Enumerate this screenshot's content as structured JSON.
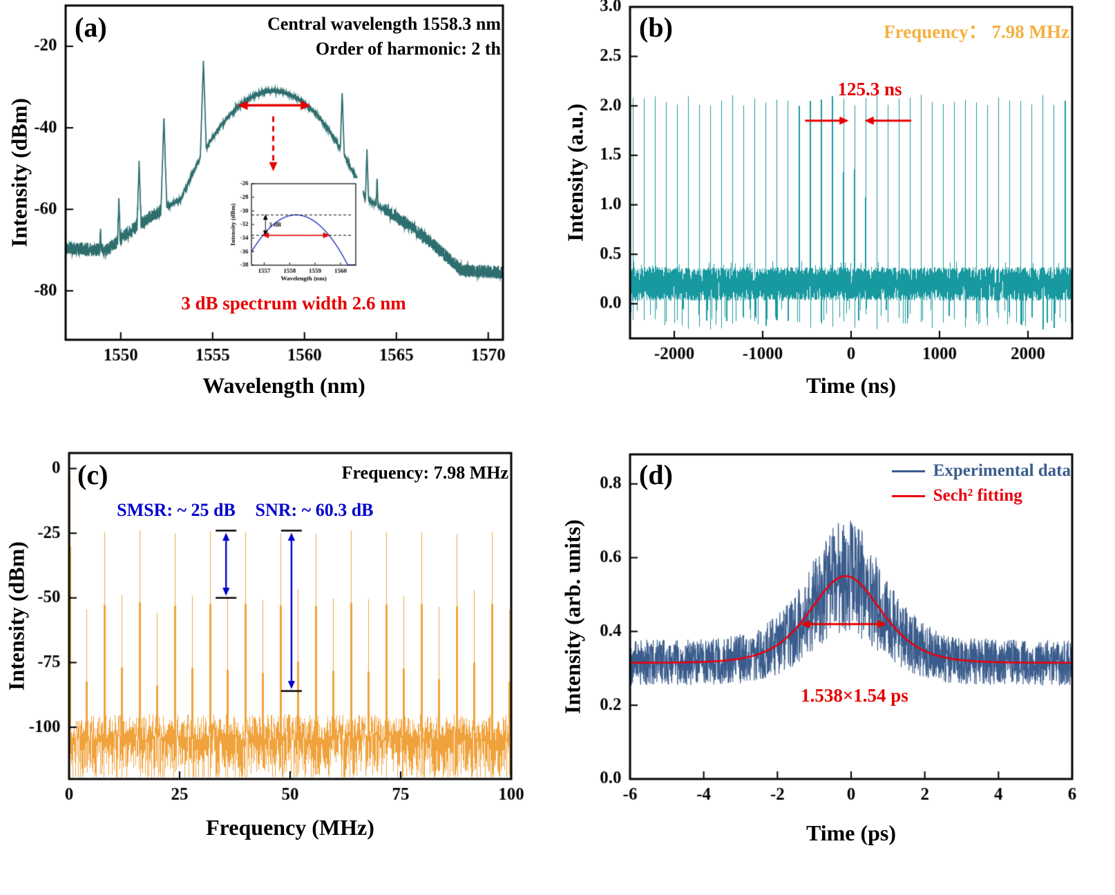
{
  "figure": {
    "background": "#ffffff"
  },
  "panels": {
    "a": {
      "label": "(a)",
      "xlabel": "Wavelength (nm)",
      "ylabel": "Intensity (dBm)",
      "ann1": "Central wavelength 1558.3 nm",
      "ann2": "Order of harmonic: 2 th",
      "width_note": "3 dB spectrum width 2.6 nm"
    },
    "b": {
      "label": "(b)",
      "xlabel": "Time (ns)",
      "ylabel": "Intensity (a.u.)",
      "freq_note": "Frequency： 7.98 MHz",
      "period_note": "125.3 ns"
    },
    "c": {
      "label": "(c)",
      "xlabel": "Frequency (MHz)",
      "ylabel": "Intensity (dBm)",
      "freq_note": "Frequency: 7.98 MHz",
      "smsr_note": "SMSR: ~ 25 dB",
      "snr_note": "SNR: ~ 60.3 dB"
    },
    "d": {
      "label": "(d)",
      "xlabel": "Time (ps)",
      "ylabel": "Intensity (arb. units)",
      "legend_exp": "Experimental data",
      "legend_fit": "Sech² fitting",
      "width_note": "1.538×1.54 ps"
    }
  },
  "chart_data": [
    {
      "panel": "a",
      "type": "line",
      "title": "Optical spectrum, 2nd-order harmonic mode locking",
      "xlabel": "Wavelength (nm)",
      "ylabel": "Intensity (dBm)",
      "xlim": [
        1547,
        1570.8
      ],
      "ylim": [
        -92,
        -10
      ],
      "xticks": [
        [
          1550,
          "1550"
        ],
        [
          1555,
          "1555"
        ],
        [
          1560,
          "1560"
        ],
        [
          1565,
          "1565"
        ],
        [
          1570,
          "1570"
        ]
      ],
      "yticks": [
        [
          -20,
          "-20"
        ],
        [
          -40,
          "-40"
        ],
        [
          -60,
          "-60"
        ],
        [
          -80,
          "-80"
        ]
      ],
      "color": "#2e6e6e",
      "central_wavelength_nm": 1558.3,
      "order_of_harmonic": 2,
      "spectrum_width_3db_nm": 2.6,
      "envelope": {
        "peak_dbm": -31,
        "coeff": 1.05
      },
      "pedestal": {
        "peak_dbm": -52,
        "coeff": 0.22
      },
      "noise_floor_dbm": {
        "left": -69.5,
        "right": -75.5
      },
      "spikes": [
        [
          1548.9,
          -64
        ],
        [
          1549.9,
          -57
        ],
        [
          1551.0,
          -48.5
        ],
        [
          1552.35,
          -37.5
        ],
        [
          1554.5,
          -23.5
        ],
        [
          1562.05,
          -31
        ],
        [
          1563.4,
          -45.5
        ],
        [
          1563.95,
          -52
        ],
        [
          1564.9,
          -62
        ],
        [
          1566.6,
          -66.5
        ]
      ],
      "width_arrow": {
        "x1": 1556.4,
        "x2": 1560.3,
        "y": -34.5
      },
      "pointer_arrow": {
        "x": 1558.3,
        "y1": -37.2,
        "y2": -50.5
      },
      "annotation_color": "#e60000",
      "inset": {
        "xlim": [
          1556.5,
          1560.6
        ],
        "ylim": [
          -38,
          -26
        ],
        "xticks": [
          [
            1557,
            "1557"
          ],
          [
            1558,
            "1558"
          ],
          [
            1559,
            "1559"
          ],
          [
            1560,
            "1560"
          ]
        ],
        "yticks": [
          [
            -26,
            "-26"
          ],
          [
            -28,
            "-28"
          ],
          [
            -30,
            "-30"
          ],
          [
            -32,
            "-32"
          ],
          [
            -34,
            "-34"
          ],
          [
            -36,
            "-36"
          ],
          [
            -38,
            "-38"
          ]
        ],
        "xlabel": "Wavelength (nm)",
        "ylabel": "Intensity (dBm)",
        "label_3db": "3 dB",
        "color": "#2233bb",
        "peak_dbm": -30.6,
        "coeff": 1.78,
        "center_nm": 1558.25,
        "dash_levels": [
          -30.6,
          -33.6
        ],
        "red_arrow": {
          "x1": 1556.95,
          "x2": 1559.55,
          "y": -33.6
        }
      }
    },
    {
      "panel": "b",
      "type": "line",
      "title": "Pulse train",
      "xlabel": "Time (ns)",
      "ylabel": "Intensity (a.u.)",
      "xlim": [
        -2500,
        2500
      ],
      "ylim": [
        -0.35,
        3.0
      ],
      "xticks": [
        [
          -2000,
          "-2000"
        ],
        [
          -1000,
          "-1000"
        ],
        [
          0,
          "0"
        ],
        [
          1000,
          "1000"
        ],
        [
          2000,
          "2000"
        ]
      ],
      "yticks": [
        [
          0,
          "0.0"
        ],
        [
          0.5,
          "0.5"
        ],
        [
          1,
          "1.0"
        ],
        [
          1.5,
          "1.5"
        ],
        [
          2,
          "2.0"
        ],
        [
          2.5,
          "2.5"
        ],
        [
          3,
          "3.0"
        ]
      ],
      "color": "#18989f",
      "repetition_frequency_mhz": 7.98,
      "pulse_period_ns": 125.3,
      "pulse_height_au": 2.05,
      "noise_band_au": [
        0.0,
        0.4
      ],
      "period_arrows": {
        "y": 1.85,
        "right_arrow": [
          -520,
          -35
        ],
        "left_arrow": [
          680,
          160
        ]
      },
      "freq_color": "#f5b041",
      "annotation_color": "#e60000"
    },
    {
      "panel": "c",
      "type": "line",
      "title": "RF spectrum",
      "xlabel": "Frequency (MHz)",
      "ylabel": "Intensity (dBm)",
      "xlim": [
        0,
        100
      ],
      "ylim": [
        -120,
        6
      ],
      "xticks": [
        [
          0,
          "0"
        ],
        [
          25,
          "25"
        ],
        [
          50,
          "50"
        ],
        [
          75,
          "75"
        ],
        [
          100,
          "100"
        ]
      ],
      "yticks": [
        [
          0,
          "0"
        ],
        [
          -25,
          "-25"
        ],
        [
          -50,
          "-50"
        ],
        [
          -75,
          "-75"
        ],
        [
          -100,
          "-100"
        ]
      ],
      "color": "#f0a23c",
      "fundamental_spacing_mhz": 3.99,
      "main_peak_spacing_mhz": 7.98,
      "main_peak_dbm": -24.5,
      "supermode_peak_dbm": -50,
      "noise_floor_dbm": [
        -119,
        -95
      ],
      "smsr_db": 25,
      "snr_db": 60.3,
      "arrow_color": "#0000cc",
      "smsr_arrow": {
        "x": 35.5,
        "y1": -24,
        "y2": -50
      },
      "snr_arrow": {
        "x": 50.3,
        "y1": -24,
        "y2": -86
      }
    },
    {
      "panel": "d",
      "type": "line",
      "title": "Autocorrelation trace",
      "xlabel": "Time (ps)",
      "ylabel": "Intensity (arb. units)",
      "xlim": [
        -6,
        6
      ],
      "ylim": [
        0,
        0.88
      ],
      "xticks": [
        [
          -6,
          "-6"
        ],
        [
          -4,
          "-4"
        ],
        [
          -2,
          "-2"
        ],
        [
          0,
          "0"
        ],
        [
          2,
          "2"
        ],
        [
          4,
          "4"
        ],
        [
          6,
          "6"
        ]
      ],
      "yticks": [
        [
          0,
          "0.0"
        ],
        [
          0.2,
          "0.2"
        ],
        [
          0.4,
          "0.4"
        ],
        [
          0.6,
          "0.6"
        ],
        [
          0.8,
          "0.8"
        ]
      ],
      "data_color": "#3a5c8c",
      "fit_color": "#e8000d",
      "fit": {
        "baseline": 0.315,
        "amplitude": 0.235,
        "center_ps": -0.15,
        "T_ps": 1.3
      },
      "autocorrelation_width_ps": 2.37,
      "deconvolution_factor": 1.538,
      "pulse_width_ps": 1.54,
      "width_arrow": {
        "x1": -1.35,
        "x2": 0.95,
        "y": 0.42
      },
      "annotation_color": "#e60000"
    }
  ]
}
